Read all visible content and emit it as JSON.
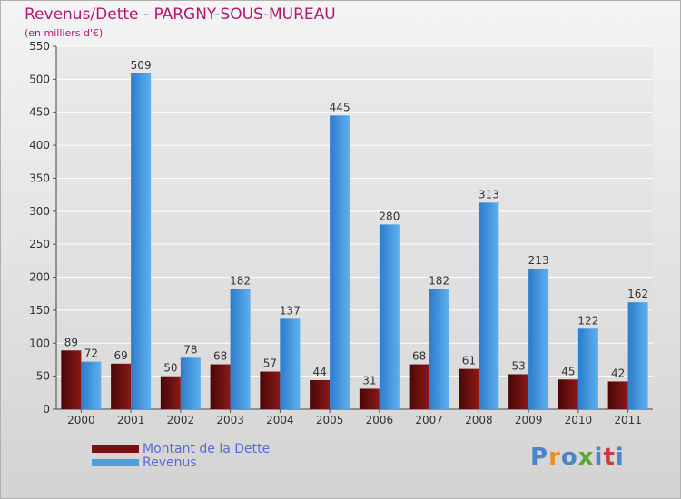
{
  "header": {
    "title": "Revenus/Dette - PARGNY-SOUS-MUREAU",
    "subtitle": "(en milliers d'€)"
  },
  "chart_data": {
    "type": "bar",
    "categories": [
      "2000",
      "2001",
      "2002",
      "2003",
      "2004",
      "2005",
      "2006",
      "2007",
      "2008",
      "2009",
      "2010",
      "2011"
    ],
    "series": [
      {
        "name": "Montant de la Dette",
        "values": [
          89,
          69,
          50,
          68,
          57,
          44,
          31,
          68,
          61,
          53,
          45,
          42
        ],
        "color": "#7a1010"
      },
      {
        "name": "Revenus",
        "values": [
          72,
          509,
          78,
          182,
          137,
          445,
          280,
          182,
          313,
          213,
          122,
          162
        ],
        "color": "#4a9fe0"
      }
    ],
    "ylim": [
      0,
      550
    ],
    "yticks": [
      0,
      50,
      100,
      150,
      200,
      250,
      300,
      350,
      400,
      450,
      500,
      550
    ],
    "grid": true,
    "legend_position": "bottom-left",
    "title": "Revenus/Dette - PARGNY-SOUS-MUREAU",
    "ylabel": "(en milliers d'€)",
    "xlabel": ""
  },
  "logo": {
    "letters": [
      "P",
      "r",
      "o",
      "x",
      "i",
      "t",
      "i"
    ],
    "colors": [
      "#4a86c8",
      "#e8902a",
      "#4a86c8",
      "#5aa832",
      "#4a86c8",
      "#c83a3a",
      "#4a86c8"
    ]
  }
}
